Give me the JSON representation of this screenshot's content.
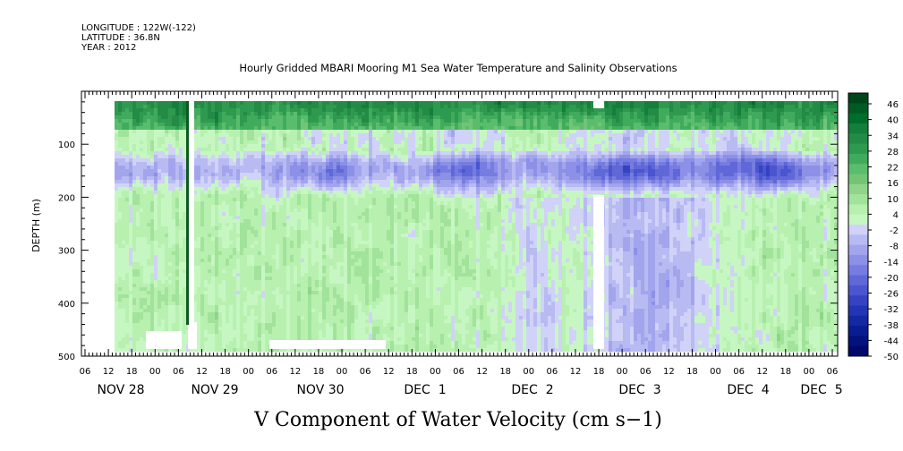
{
  "header": {
    "longitude": "LONGITUDE : 122W(-122)",
    "latitude": "LATITUDE : 36.8N",
    "year": "YEAR : 2012"
  },
  "chart_data": {
    "type": "heatmap",
    "title": "Hourly Gridded MBARI Mooring M1 Sea Water Temperature and Salinity Observations",
    "xlabel": "V Component of Water Velocity (cm s−1)",
    "ylabel": "DEPTH (m)",
    "ylim": [
      500,
      0
    ],
    "y_ticks": [
      100,
      200,
      300,
      400,
      500
    ],
    "x_hour_ticks": [
      "06",
      "12",
      "18",
      "00",
      "06",
      "12",
      "18",
      "00",
      "06",
      "12",
      "18",
      "00",
      "06",
      "12",
      "18",
      "00",
      "06",
      "12",
      "18",
      "00",
      "06",
      "12",
      "18",
      "00",
      "06",
      "12",
      "18",
      "00",
      "06",
      "12",
      "18",
      "00",
      "06"
    ],
    "day_labels": [
      "NOV 28",
      "NOV 29",
      "NOV 30",
      "DEC  1",
      "DEC  2",
      "DEC  3",
      "DEC  4",
      "DEC  5"
    ],
    "colorbar": {
      "ticks": [
        46,
        40,
        34,
        28,
        22,
        16,
        10,
        4,
        -2,
        -8,
        -14,
        -20,
        -26,
        -32,
        -38,
        -44,
        -50
      ],
      "colors": [
        "#00441b",
        "#005a24",
        "#006d2c",
        "#12803a",
        "#238b45",
        "#2e9a4f",
        "#41ab5d",
        "#5abd6d",
        "#74c476",
        "#8fd48a",
        "#a1e39a",
        "#b8f0b0",
        "#c6f7c2",
        "#d0d2f8",
        "#b8baf2",
        "#a2a5ec",
        "#8c90e6",
        "#767ce0",
        "#6068d8",
        "#4a55ce",
        "#3543c2",
        "#2235b4",
        "#1428a4",
        "#0a1c92",
        "#04127e",
        "#000869"
      ]
    },
    "pattern_description_days": [
      "surface layer positive (green) 20-70 m",
      "negative band ~130-180 m",
      "deep mostly weak positive/negative mixture"
    ]
  }
}
